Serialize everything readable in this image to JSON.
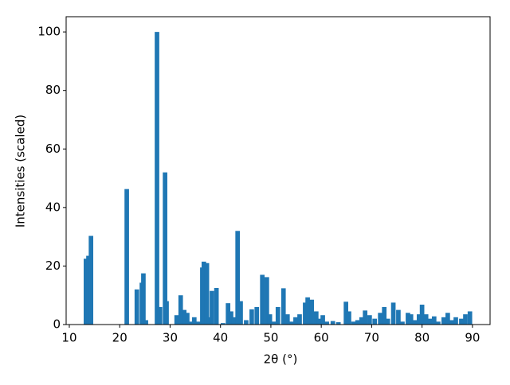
{
  "chart_data": {
    "type": "bar",
    "xlabel": "2θ (°)",
    "ylabel": "Intensities (scaled)",
    "color": "#1f77b4",
    "x": [
      13.3,
      13.8,
      14.3,
      21.4,
      23.4,
      24.4,
      24.7,
      25.2,
      27.4,
      28.0,
      29.0,
      29.3,
      31.3,
      32.1,
      32.8,
      33.4,
      34.2,
      34.8,
      35.6,
      36.4,
      36.7,
      37.3,
      37.8,
      38.3,
      39.2,
      40.5,
      41.5,
      42.1,
      42.6,
      43.4,
      44.0,
      45.1,
      46.2,
      47.2,
      48.3,
      49.2,
      49.8,
      50.6,
      51.4,
      52.5,
      53.3,
      54.1,
      54.9,
      55.7,
      56.8,
      57.3,
      58.1,
      59.0,
      59.5,
      60.3,
      61.1,
      62.3,
      63.4,
      64.9,
      65.5,
      66.4,
      67.2,
      68.0,
      68.7,
      69.6,
      70.6,
      71.7,
      72.5,
      73.2,
      74.3,
      75.3,
      76.1,
      77.2,
      77.8,
      78.6,
      79.4,
      80.0,
      80.8,
      81.6,
      82.4,
      83.2,
      84.3,
      85.1,
      85.9,
      86.7,
      87.8,
      88.6,
      89.5
    ],
    "values": [
      22.5,
      23.5,
      30.3,
      46.3,
      12,
      14.3,
      17.5,
      1.5,
      100,
      6,
      52,
      8,
      3.2,
      10,
      5,
      4,
      1,
      2.5,
      1,
      19.5,
      21.5,
      21,
      2.5,
      11.5,
      12.5,
      0.5,
      7.3,
      4.5,
      2.5,
      32,
      8,
      1.5,
      5.2,
      6,
      17,
      16.2,
      3.5,
      1,
      6,
      12.4,
      3.5,
      1,
      2.5,
      3.5,
      7.5,
      9.3,
      8.5,
      4.5,
      2,
      3.2,
      1,
      1.2,
      0.8,
      7.8,
      4.5,
      1,
      1.5,
      2.5,
      4.8,
      3.2,
      2,
      4,
      6,
      2,
      7.5,
      5,
      1,
      4,
      3.5,
      1.5,
      3.5,
      6.8,
      3.5,
      2,
      2.8,
      1,
      2.5,
      4,
      1.5,
      2.5,
      2,
      3.5,
      4.5
    ],
    "xlim": [
      9.37,
      93.5
    ],
    "xticks": [
      10,
      20,
      30,
      40,
      50,
      60,
      70,
      80,
      90
    ],
    "ylim": [
      0,
      105.2
    ],
    "yticks": [
      0,
      20,
      40,
      60,
      80,
      100
    ]
  }
}
